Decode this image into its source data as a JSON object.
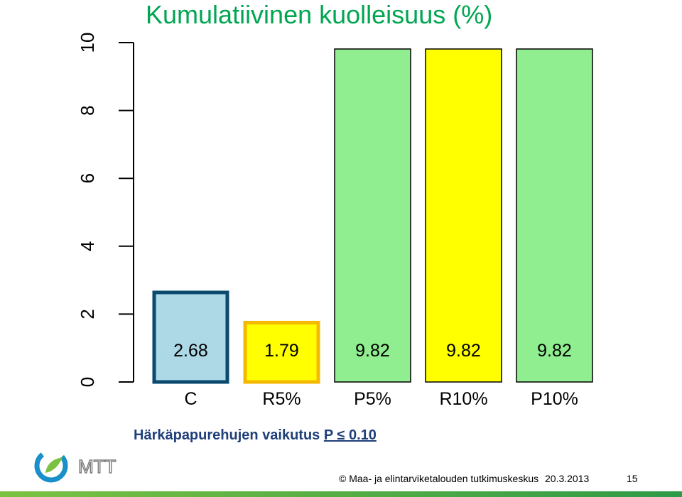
{
  "slide": {
    "title": "Kumulatiivinen kuolleisuus (%)",
    "subtitle_main": "Härkäpapurehujen vaikutus ",
    "subtitle_pvalue": "P ≤ 0.10",
    "logo_text": "MTT",
    "footer_org": "© Maa- ja elintarviketalouden tutkimuskeskus",
    "footer_date": "20.3.2013",
    "page_number": "15"
  },
  "colors": {
    "title": "#00A651",
    "subtitle": "#1f3f7a",
    "light_blue": "#ADD8E6",
    "yellow": "#FFFF00",
    "light_green": "#90EE90",
    "blue_border": "#0a4a6e",
    "orange_border": "#F5B800"
  },
  "chart_data": {
    "type": "bar",
    "categories": [
      "C",
      "R5%",
      "P5%",
      "R10%",
      "P10%"
    ],
    "values": [
      2.68,
      1.79,
      9.82,
      9.82,
      9.82
    ],
    "value_labels": [
      "2.68",
      "1.79",
      "9.82",
      "9.82",
      "9.82"
    ],
    "ylim": [
      0,
      10
    ],
    "y_ticks": [
      0,
      2,
      4,
      6,
      8,
      10
    ],
    "y_tick_labels": [
      "0",
      "2",
      "4",
      "6",
      "8",
      "10"
    ],
    "clipped_at_top": true,
    "bar_fills": [
      "#ADD8E6",
      "#FFFF00",
      "#90EE90",
      "#FFFF00",
      "#90EE90"
    ],
    "bar_borders": [
      "#0a4a6e",
      "#F5B800",
      "#000000",
      "#000000",
      "#000000"
    ],
    "grid": false,
    "xlabel": "",
    "ylabel": ""
  }
}
